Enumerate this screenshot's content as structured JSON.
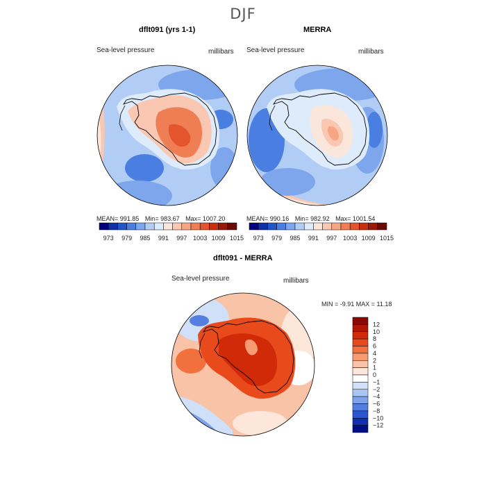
{
  "figure": {
    "season_title": "DJF",
    "variable_label": "Sea-level pressure",
    "units_label": "millibars"
  },
  "chart_data": [
    {
      "type": "heatmap",
      "title": "dflt091 (yrs 1-1)",
      "variable": "Sea-level pressure",
      "units": "millibars",
      "projection": "south-polar-stereographic",
      "stats": {
        "mean_text": "MEAN= 991.85",
        "min_text": "Min= 983.67",
        "max_text": "Max= 1007.20",
        "mean": 991.85,
        "min": 983.67,
        "max": 1007.2
      },
      "colorbar_ticks": [
        "973",
        "979",
        "985",
        "991",
        "997",
        "1003",
        "1009",
        "1015"
      ],
      "colorbar_colors": [
        "#00007f",
        "#1030a8",
        "#2255c8",
        "#4a7ee0",
        "#7ea6ec",
        "#b2cdf5",
        "#deebfb",
        "#fbe6dc",
        "#f9c7b2",
        "#f7a684",
        "#f07e55",
        "#e4552d",
        "#c83010",
        "#9a1a0a",
        "#6b0a05"
      ]
    },
    {
      "type": "heatmap",
      "title": "MERRA",
      "variable": "Sea-level pressure",
      "units": "millibars",
      "projection": "south-polar-stereographic",
      "stats": {
        "mean_text": "MEAN= 990.16",
        "min_text": "Min= 982.92",
        "max_text": "Max= 1001.54",
        "mean": 990.16,
        "min": 982.92,
        "max": 1001.54
      },
      "colorbar_ticks": [
        "973",
        "979",
        "985",
        "991",
        "997",
        "1003",
        "1009",
        "1015"
      ],
      "colorbar_colors": [
        "#00007f",
        "#1030a8",
        "#2255c8",
        "#4a7ee0",
        "#7ea6ec",
        "#b2cdf5",
        "#deebfb",
        "#fbe6dc",
        "#f9c7b2",
        "#f7a684",
        "#f07e55",
        "#e4552d",
        "#c83010",
        "#9a1a0a",
        "#6b0a05"
      ]
    },
    {
      "type": "heatmap",
      "title": "dflt091 - MERRA",
      "variable": "Sea-level pressure",
      "units": "millibars",
      "projection": "south-polar-stereographic",
      "stats": {
        "min_max_text": "MIN =  -9.91  MAX =  11.18",
        "min": -9.91,
        "max": 11.18
      },
      "colorbar_levels": [
        "12",
        "10",
        "8",
        "6",
        "4",
        "2",
        "1",
        "0",
        "−1",
        "−2",
        "−4",
        "−6",
        "−8",
        "−10",
        "−12"
      ],
      "colorbar_colors": [
        "#8b0a05",
        "#b01805",
        "#d02a08",
        "#e84a1c",
        "#f2703e",
        "#f69b72",
        "#f9c3a8",
        "#fde6da",
        "#ffffff",
        "#cfe0f8",
        "#a8c6f3",
        "#7fa3ea",
        "#547ee0",
        "#2c55d2",
        "#1030b0",
        "#000e88"
      ]
    }
  ]
}
